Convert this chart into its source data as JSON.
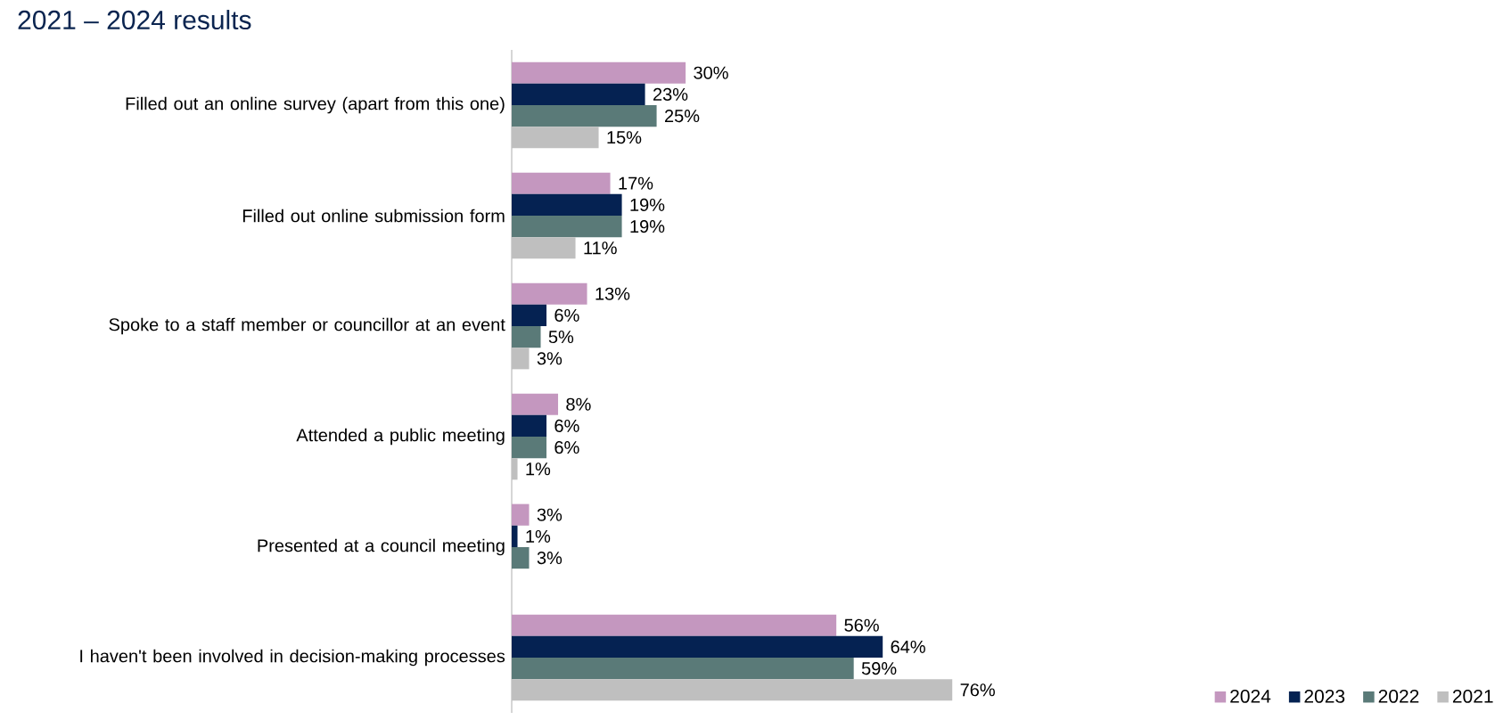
{
  "chart_data": {
    "type": "bar",
    "orientation": "horizontal",
    "title": "2021 – 2024 results",
    "categories": [
      "Filled out an online survey (apart from this one)",
      "Filled out online submission form",
      "Spoke to a staff member or councillor at an event",
      "Attended a public meeting",
      "Presented at a council meeting",
      "I haven't been involved in decision-making processes"
    ],
    "series": [
      {
        "name": "2024",
        "color": "#c497bf",
        "values": [
          30,
          17,
          13,
          8,
          3,
          56
        ],
        "value_labels": [
          "30%",
          "17%",
          "13%",
          "8%",
          "3%",
          "56%"
        ]
      },
      {
        "name": "2023",
        "color": "#052252",
        "values": [
          23,
          19,
          6,
          6,
          1,
          64
        ],
        "value_labels": [
          "23%",
          "19%",
          "6%",
          "6%",
          "1%",
          "64%"
        ]
      },
      {
        "name": "2022",
        "color": "#5a7a78",
        "values": [
          25,
          19,
          5,
          6,
          3,
          59
        ],
        "value_labels": [
          "25%",
          "19%",
          "5%",
          "6%",
          "3%",
          "59%"
        ]
      },
      {
        "name": "2021",
        "color": "#bfbfbf",
        "values": [
          15,
          11,
          3,
          1,
          null,
          76
        ],
        "value_labels": [
          "15%",
          "11%",
          "3%",
          "1%",
          null,
          "76%"
        ]
      }
    ],
    "legend": "bottom right"
  }
}
